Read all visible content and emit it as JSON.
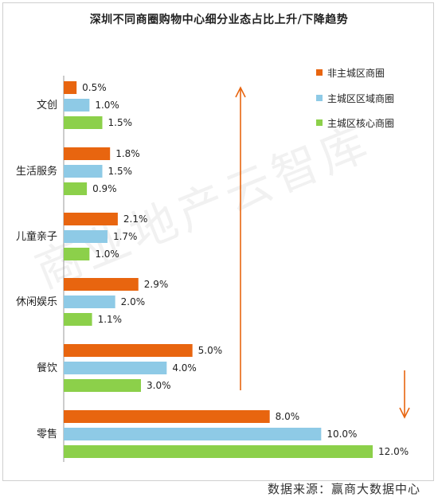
{
  "title": "深圳不同商圈购物中心细分业态占比上升/下降趋势",
  "source": "数据来源：赢商大数据中心",
  "watermark": "商业地产云智库",
  "colors": {
    "series1": "#e8650f",
    "series2": "#8ecae6",
    "series3": "#8cd04a",
    "arrow": "#e8650f",
    "axis": "#999999"
  },
  "chart_data": {
    "type": "bar",
    "orientation": "horizontal",
    "categories": [
      "文创",
      "生活服务",
      "儿童亲子",
      "休闲娱乐",
      "餐饮",
      "零售"
    ],
    "series": [
      {
        "name": "非主城区商圈",
        "values": [
          0.5,
          1.8,
          2.1,
          2.9,
          5.0,
          8.0
        ]
      },
      {
        "name": "主城区区域商圈",
        "values": [
          1.0,
          1.5,
          1.7,
          2.0,
          4.0,
          10.0
        ]
      },
      {
        "name": "主城区核心商圈",
        "values": [
          1.5,
          0.9,
          1.0,
          1.1,
          3.0,
          12.0
        ]
      }
    ],
    "value_labels": [
      [
        "0.5%",
        "1.8%",
        "2.1%",
        "2.9%",
        "5.0%",
        "8.0%"
      ],
      [
        "1.0%",
        "1.5%",
        "1.7%",
        "2.0%",
        "4.0%",
        "10.0%"
      ],
      [
        "1.5%",
        "0.9%",
        "1.0%",
        "1.1%",
        "3.0%",
        "12.0%"
      ]
    ],
    "xlim": [
      0,
      12.0
    ],
    "grid": false,
    "legend_position": "top-right",
    "annotations": [
      "up-arrow (upper categories trend up)",
      "down-arrow (零售 trends down)"
    ]
  }
}
